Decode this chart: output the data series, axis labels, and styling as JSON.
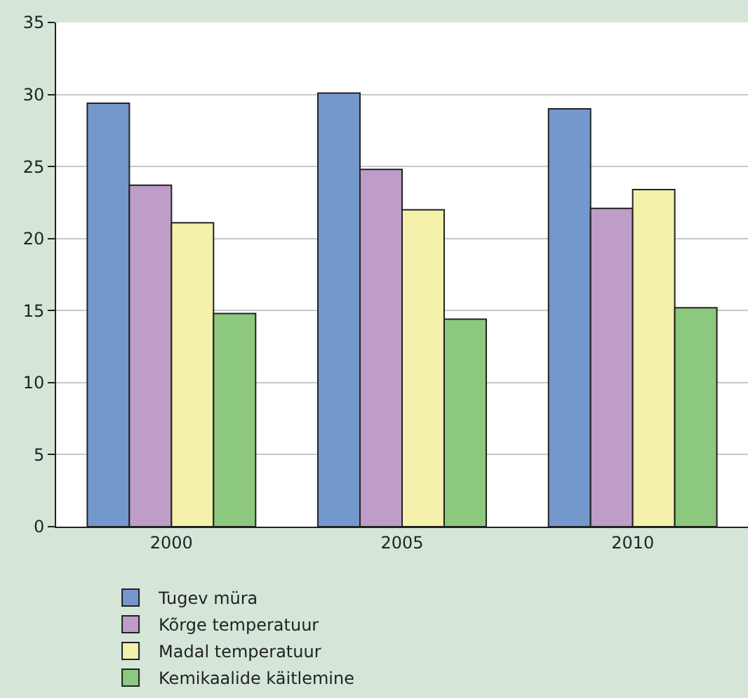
{
  "chart_data": {
    "type": "bar",
    "categories": [
      "2000",
      "2005",
      "2010"
    ],
    "series": [
      {
        "name": "Tugev müra",
        "color": "#7598cc",
        "values": [
          29.4,
          30.1,
          29.0
        ]
      },
      {
        "name": "Kõrge temperatuur",
        "color": "#be9dc8",
        "values": [
          23.7,
          24.8,
          22.1
        ]
      },
      {
        "name": "Madal temperatuur",
        "color": "#f3f1ab",
        "values": [
          21.1,
          22.0,
          23.4
        ]
      },
      {
        "name": "Kemikaalide käitlemine",
        "color": "#8cc97e",
        "values": [
          14.8,
          14.4,
          15.2
        ]
      }
    ],
    "ylim": [
      0,
      35
    ],
    "yticks": [
      0,
      5,
      10,
      15,
      20,
      25,
      30,
      35
    ],
    "grid": "y",
    "legend": "bottom"
  }
}
